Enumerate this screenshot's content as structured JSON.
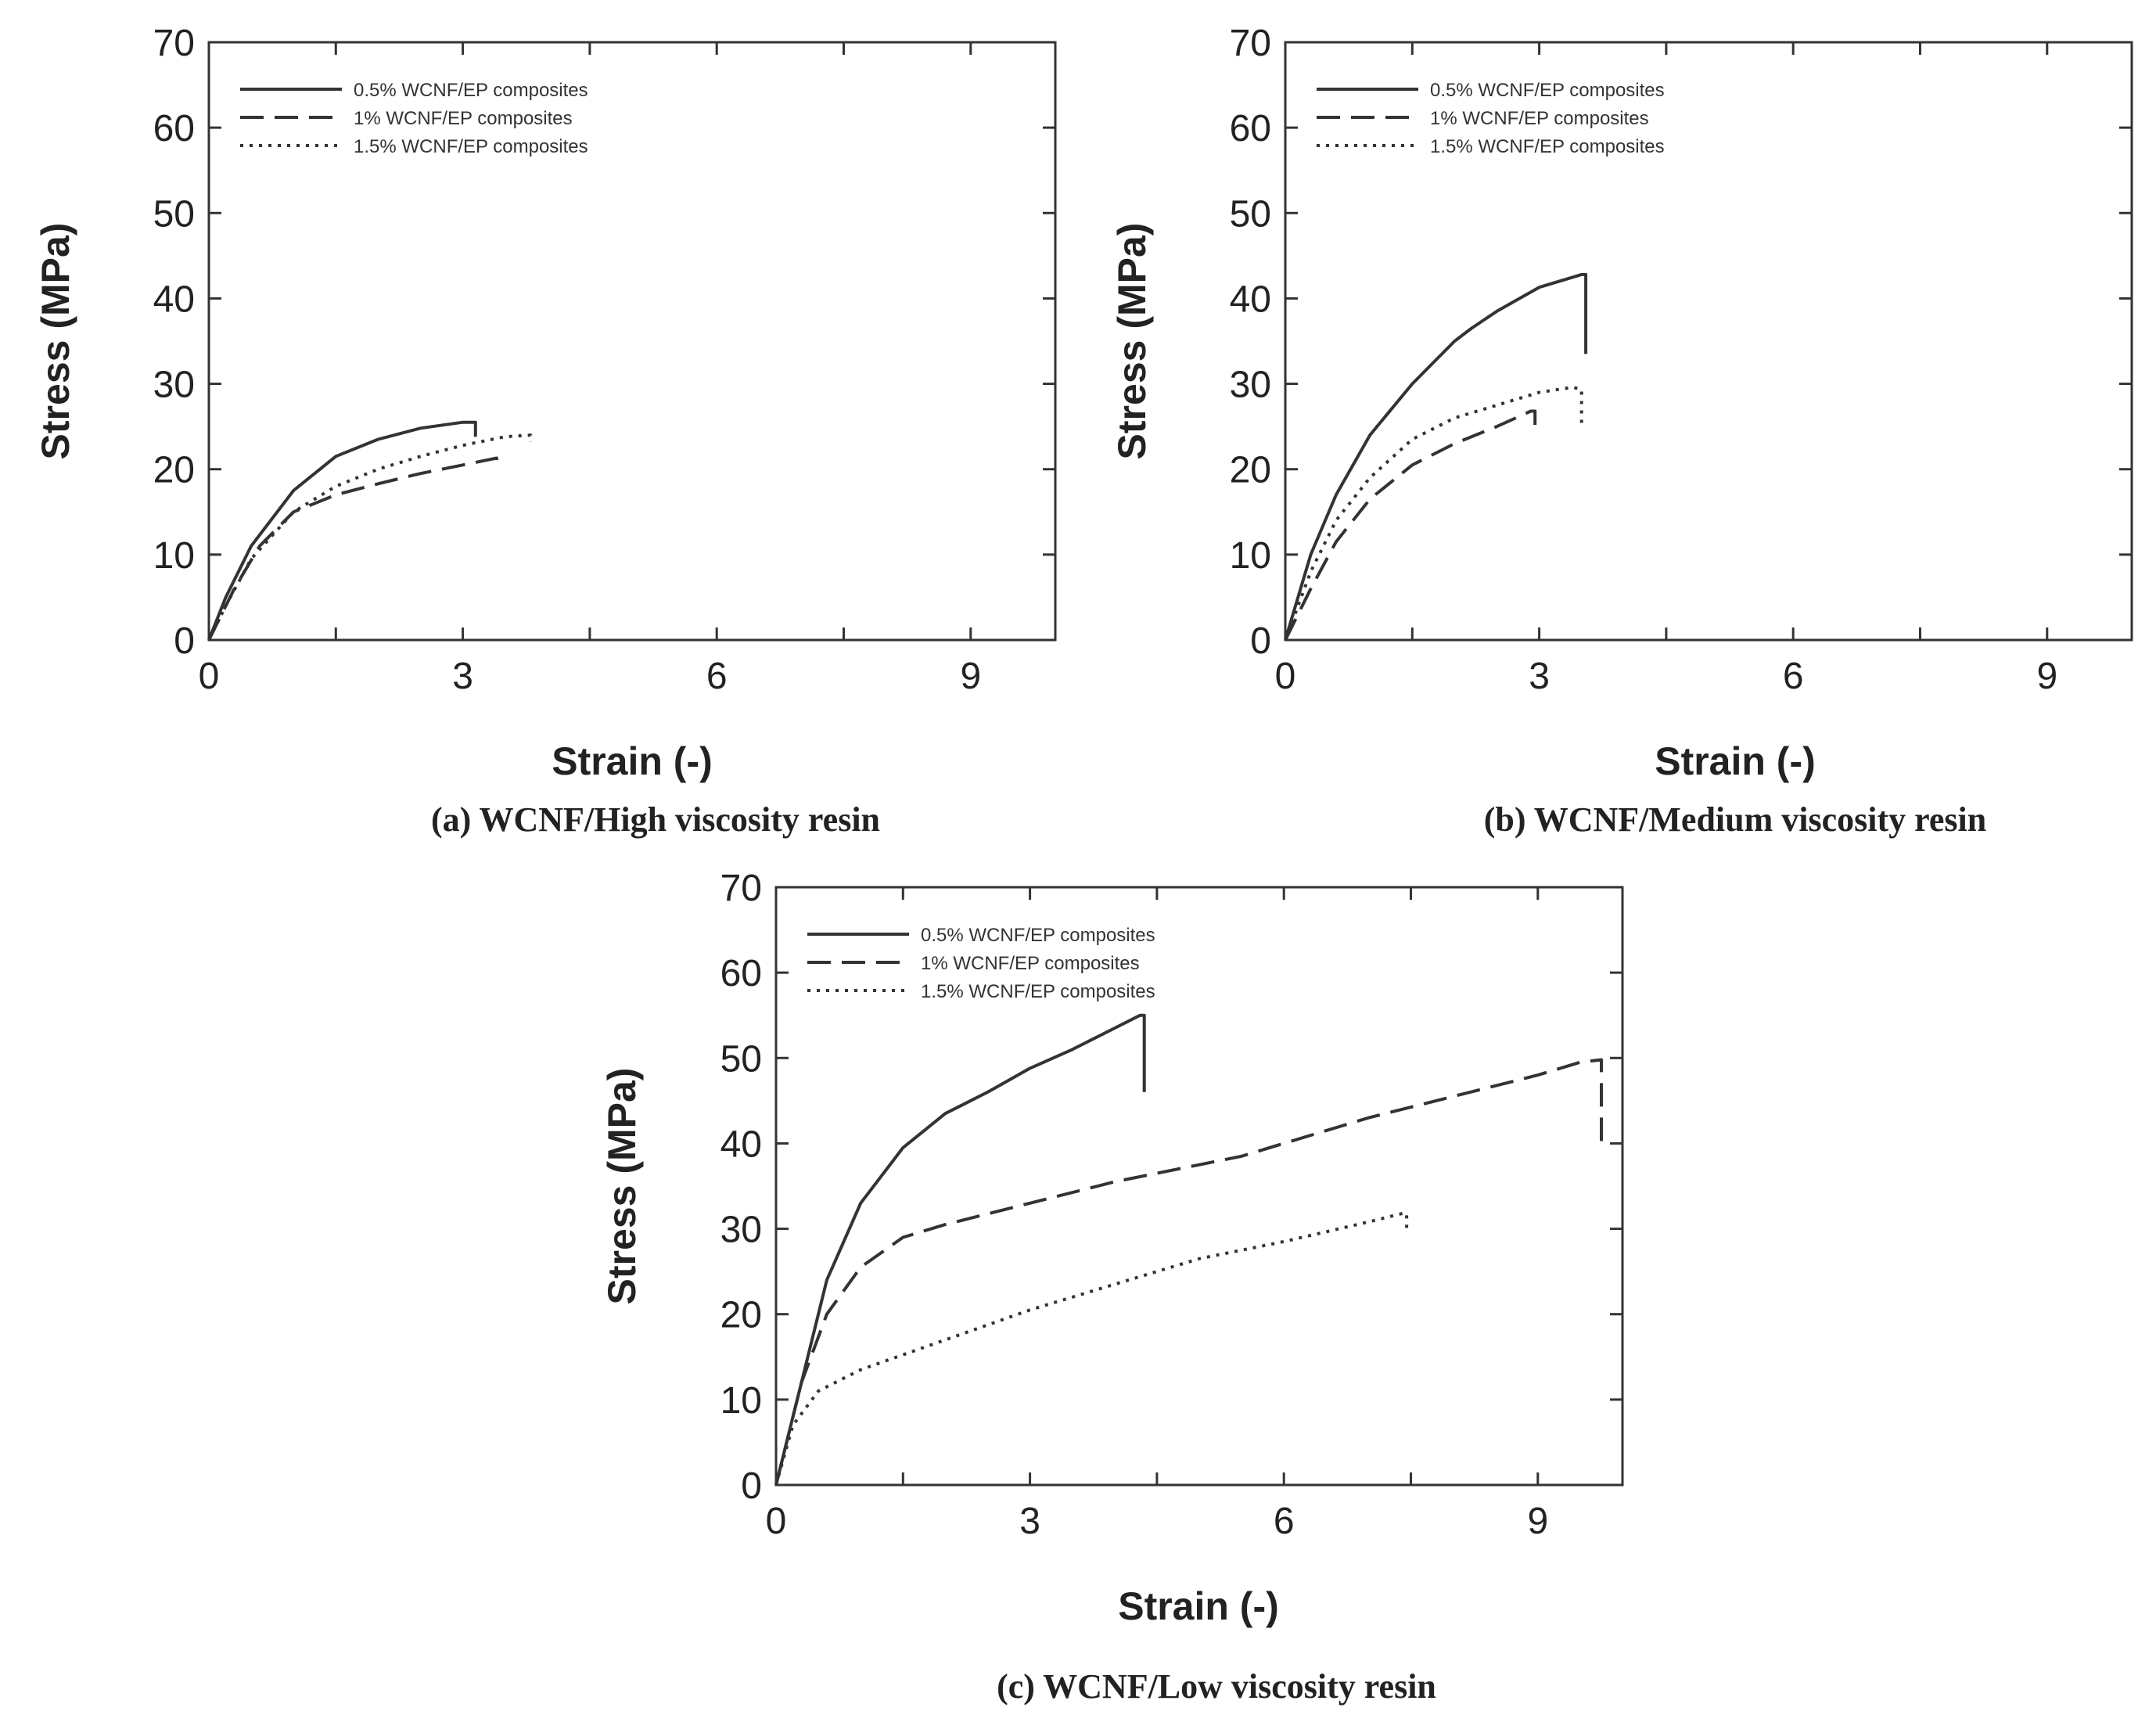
{
  "chart_data": [
    {
      "id": "a",
      "type": "line",
      "caption": "(a) WCNF/High viscosity resin",
      "xlabel": "Strain (-)",
      "ylabel": "Stress (MPa)",
      "xlim": [
        0,
        10
      ],
      "ylim": [
        0,
        70
      ],
      "xticks": [
        0,
        3,
        6,
        9
      ],
      "xticks_minor": [
        1.5,
        4.5,
        7.5
      ],
      "yticks": [
        0,
        10,
        20,
        30,
        40,
        50,
        60,
        70
      ],
      "legend_position": "top-left",
      "series": [
        {
          "name": "0.5% WCNF/EP composites",
          "style": "solid",
          "points": [
            [
              0,
              0
            ],
            [
              0.2,
              5
            ],
            [
              0.5,
              11
            ],
            [
              1.0,
              17.5
            ],
            [
              1.5,
              21.5
            ],
            [
              2.0,
              23.5
            ],
            [
              2.5,
              24.8
            ],
            [
              3.0,
              25.5
            ],
            [
              3.15,
              25.5
            ],
            [
              3.15,
              23.8
            ]
          ]
        },
        {
          "name": "1% WCNF/EP composites",
          "style": "dashed",
          "points": [
            [
              0,
              0
            ],
            [
              0.3,
              6
            ],
            [
              0.6,
              11
            ],
            [
              1.0,
              15
            ],
            [
              1.5,
              17
            ],
            [
              2.0,
              18.3
            ],
            [
              2.5,
              19.5
            ],
            [
              3.0,
              20.5
            ],
            [
              3.4,
              21.3
            ],
            [
              3.4,
              20.2
            ]
          ]
        },
        {
          "name": "1.5% WCNF/EP composites",
          "style": "dotted",
          "points": [
            [
              0,
              0
            ],
            [
              0.2,
              4
            ],
            [
              0.5,
              9.5
            ],
            [
              1.0,
              15
            ],
            [
              1.5,
              18
            ],
            [
              2.0,
              20
            ],
            [
              2.5,
              21.5
            ],
            [
              3.0,
              22.8
            ],
            [
              3.5,
              23.8
            ],
            [
              3.8,
              24
            ],
            [
              3.8,
              23.2
            ]
          ]
        }
      ]
    },
    {
      "id": "b",
      "type": "line",
      "caption": "(b) WCNF/Medium viscosity resin",
      "xlabel": "Strain (-)",
      "ylabel": "Stress (MPa)",
      "xlim": [
        0,
        10
      ],
      "ylim": [
        0,
        70
      ],
      "xticks": [
        0,
        3,
        6,
        9
      ],
      "xticks_minor": [
        1.5,
        4.5,
        7.5
      ],
      "yticks": [
        0,
        10,
        20,
        30,
        40,
        50,
        60,
        70
      ],
      "legend_position": "top-left",
      "series": [
        {
          "name": "0.5% WCNF/EP composites",
          "style": "solid",
          "points": [
            [
              0,
              0
            ],
            [
              0.3,
              10
            ],
            [
              0.6,
              17
            ],
            [
              1.0,
              24
            ],
            [
              1.5,
              30
            ],
            [
              2.0,
              35
            ],
            [
              2.2,
              36.5
            ],
            [
              2.5,
              38.5
            ],
            [
              3.0,
              41.3
            ],
            [
              3.5,
              42.8
            ],
            [
              3.55,
              42.8
            ],
            [
              3.55,
              33.5
            ]
          ]
        },
        {
          "name": "1% WCNF/EP composites",
          "style": "dashed",
          "points": [
            [
              0,
              0
            ],
            [
              0.3,
              6
            ],
            [
              0.6,
              11.5
            ],
            [
              1.0,
              16.5
            ],
            [
              1.5,
              20.5
            ],
            [
              2.0,
              23
            ],
            [
              2.5,
              25
            ],
            [
              2.9,
              26.8
            ],
            [
              2.95,
              26.8
            ],
            [
              2.95,
              24
            ]
          ]
        },
        {
          "name": "1.5% WCNF/EP composites",
          "style": "dotted",
          "points": [
            [
              0,
              0
            ],
            [
              0.3,
              8
            ],
            [
              0.6,
              14
            ],
            [
              1.0,
              19
            ],
            [
              1.5,
              23.5
            ],
            [
              2.0,
              26
            ],
            [
              2.5,
              27.5
            ],
            [
              3.0,
              29
            ],
            [
              3.4,
              29.6
            ],
            [
              3.5,
              29.3
            ],
            [
              3.5,
              25
            ]
          ]
        }
      ]
    },
    {
      "id": "c",
      "type": "line",
      "caption": "(c) WCNF/Low viscosity resin",
      "xlabel": "Strain (-)",
      "ylabel": "Stress (MPa)",
      "xlim": [
        0,
        10
      ],
      "ylim": [
        0,
        70
      ],
      "xticks": [
        0,
        3,
        6,
        9
      ],
      "xticks_minor": [
        1.5,
        4.5,
        7.5
      ],
      "yticks": [
        0,
        10,
        20,
        30,
        40,
        50,
        60,
        70
      ],
      "legend_position": "top-left",
      "series": [
        {
          "name": "0.5% WCNF/EP composites",
          "style": "solid",
          "points": [
            [
              0,
              0
            ],
            [
              0.3,
              12
            ],
            [
              0.6,
              24
            ],
            [
              1.0,
              33
            ],
            [
              1.5,
              39.5
            ],
            [
              2.0,
              43.5
            ],
            [
              2.2,
              44.5
            ],
            [
              2.5,
              46
            ],
            [
              3.0,
              48.8
            ],
            [
              3.5,
              51
            ],
            [
              4.0,
              53.5
            ],
            [
              4.3,
              55
            ],
            [
              4.35,
              55
            ],
            [
              4.35,
              46
            ]
          ]
        },
        {
          "name": "1% WCNF/EP composites",
          "style": "dashed",
          "points": [
            [
              0,
              0
            ],
            [
              0.3,
              12
            ],
            [
              0.6,
              20
            ],
            [
              1.0,
              25.5
            ],
            [
              1.5,
              29
            ],
            [
              2.0,
              30.5
            ],
            [
              3.0,
              33
            ],
            [
              4.0,
              35.5
            ],
            [
              5.0,
              37.5
            ],
            [
              5.5,
              38.5
            ],
            [
              6.0,
              40
            ],
            [
              7.0,
              43
            ],
            [
              8.0,
              45.5
            ],
            [
              9.0,
              48
            ],
            [
              9.5,
              49.5
            ],
            [
              9.75,
              49.8
            ],
            [
              9.75,
              39
            ]
          ]
        },
        {
          "name": "1.5% WCNF/EP composites",
          "style": "dotted",
          "points": [
            [
              0,
              0
            ],
            [
              0.2,
              7
            ],
            [
              0.5,
              11
            ],
            [
              1.0,
              13.5
            ],
            [
              2.0,
              17
            ],
            [
              3.0,
              20.5
            ],
            [
              4.0,
              23.5
            ],
            [
              5.0,
              26.5
            ],
            [
              6.0,
              28.5
            ],
            [
              7.0,
              30.8
            ],
            [
              7.4,
              31.8
            ],
            [
              7.45,
              31.8
            ],
            [
              7.45,
              29.5
            ]
          ]
        }
      ]
    }
  ]
}
